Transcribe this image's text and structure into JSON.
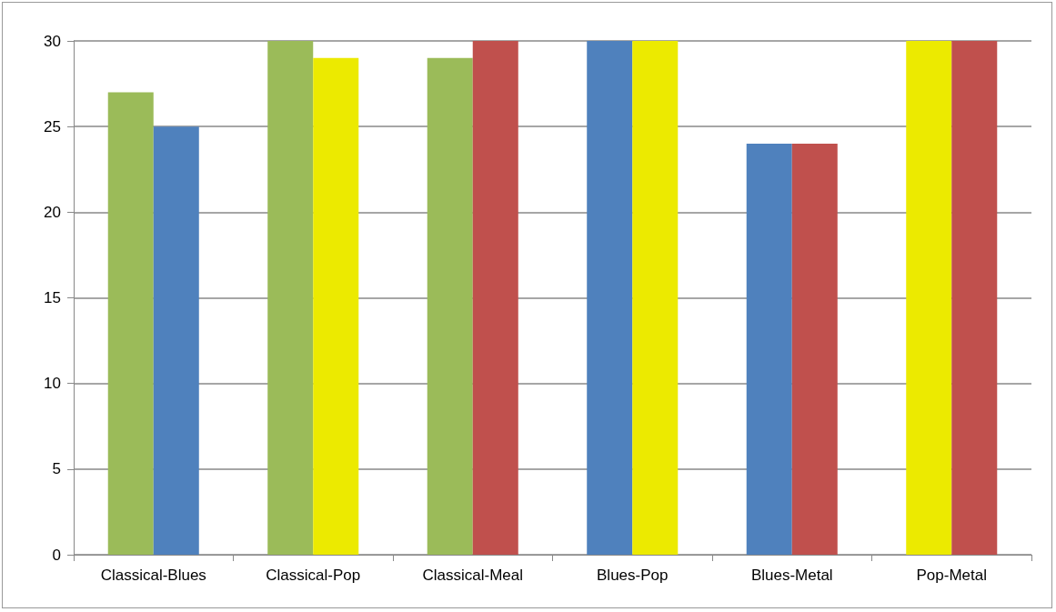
{
  "chart_data": {
    "type": "bar",
    "categories": [
      "Classical-Blues",
      "Classical-Pop",
      "Classical-Meal",
      "Blues-Pop",
      "Blues-Metal",
      "Pop-Metal"
    ],
    "series": [
      {
        "colors": [
          "#9bbb59",
          "#9bbb59",
          "#9bbb59",
          "#4f81bd",
          "#4f81bd",
          "#ecea00"
        ],
        "values": [
          27,
          30,
          29,
          30,
          24,
          30
        ]
      },
      {
        "colors": [
          "#4f81bd",
          "#ecea00",
          "#c0504d",
          "#ecea00",
          "#c0504d",
          "#c0504d"
        ],
        "values": [
          25,
          29,
          30,
          30,
          24,
          30
        ]
      }
    ],
    "ylim": [
      0,
      30
    ],
    "yticks": [
      0,
      5,
      10,
      15,
      20,
      25,
      30
    ],
    "grid": "y"
  }
}
